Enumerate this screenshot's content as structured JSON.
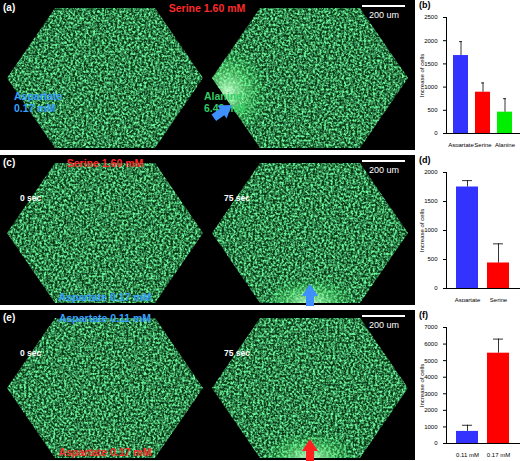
{
  "image_panels": [
    {
      "label": "(a)",
      "scale_bar": "200 um",
      "top_label": {
        "lines": [
          "Serine 1.60 mM"
        ],
        "color": "#ff2a2a"
      },
      "left_label": {
        "lines": [
          "Aspartate",
          "0.17 mM"
        ],
        "color": "#39a0ff"
      },
      "right_label": {
        "lines": [
          "Alanine",
          "6.42 mM"
        ],
        "color": "#33cc66"
      },
      "arrow": "left",
      "arrow_color": "#3f8fff"
    },
    {
      "label": "(c)",
      "scale_bar": "200 um",
      "times": [
        "0 sec",
        "75 sec"
      ],
      "top_label": {
        "lines": [
          "Serine 1.60 mM"
        ],
        "color": "#ff2a2a"
      },
      "bottom_label": {
        "lines": [
          "Aspartate 0.17 mM"
        ],
        "color": "#39a0ff"
      },
      "arrow": "bottom",
      "arrow_color": "#3f8fff"
    },
    {
      "label": "(e)",
      "scale_bar": "200 um",
      "times": [
        "0 sec",
        "75 sec"
      ],
      "top_label": {
        "lines": [
          "Aspartate 0.11 mM"
        ],
        "color": "#39a0ff"
      },
      "bottom_label": {
        "lines": [
          "Aspartate 0.17 mM"
        ],
        "color": "#ff2a2a"
      },
      "arrow": "bottom",
      "arrow_color": "#ff2020"
    }
  ],
  "chart_data": [
    {
      "type": "bar",
      "title": "(b)",
      "y_label": "Increase of cells",
      "categories": [
        "Aspartate",
        "Serine",
        "Alanine"
      ],
      "values": [
        1680,
        890,
        460
      ],
      "errors": [
        300,
        200,
        290
      ],
      "colors": [
        "#3333ff",
        "#ff0000",
        "#00ee00"
      ],
      "ylim": [
        0,
        2500
      ],
      "yticks": [
        0,
        500,
        1000,
        1500,
        2000,
        2500
      ]
    },
    {
      "type": "bar",
      "title": "(d)",
      "y_label": "Increase of cells",
      "categories": [
        "Aspartate",
        "Serine"
      ],
      "values": [
        1750,
        440
      ],
      "errors": [
        110,
        330
      ],
      "colors": [
        "#3333ff",
        "#ff0000"
      ],
      "ylim": [
        0,
        2000
      ],
      "yticks": [
        0,
        500,
        1000,
        1500,
        2000
      ]
    },
    {
      "type": "bar",
      "title": "(f)",
      "y_label": "Increase of cells",
      "categories": [
        "0.11 mM",
        "0.17 mM"
      ],
      "values": [
        730,
        5450
      ],
      "errors": [
        370,
        850
      ],
      "colors": [
        "#3333ff",
        "#ff0000"
      ],
      "ylim": [
        0,
        7000
      ],
      "yticks": [
        0,
        1000,
        2000,
        3000,
        4000,
        5000,
        6000,
        7000
      ]
    }
  ]
}
